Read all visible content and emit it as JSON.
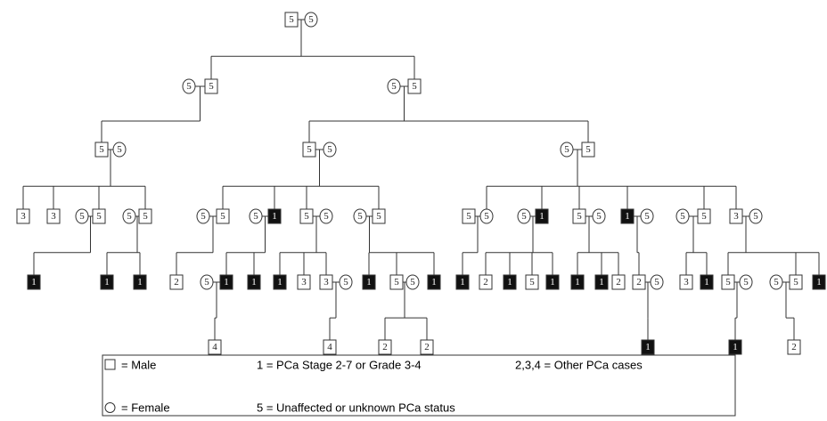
{
  "nodes": [
    {
      "label": "5",
      "sex": "male",
      "affected": false
    },
    {
      "label": "5",
      "sex": "female",
      "affected": false
    },
    {
      "label": "5",
      "sex": "female",
      "affected": false
    },
    {
      "label": "5",
      "sex": "male",
      "affected": false
    },
    {
      "label": "5",
      "sex": "female",
      "affected": false
    },
    {
      "label": "5",
      "sex": "male",
      "affected": false
    },
    {
      "label": "5",
      "sex": "male",
      "affected": false
    },
    {
      "label": "5",
      "sex": "female",
      "affected": false
    },
    {
      "label": "5",
      "sex": "male",
      "affected": false
    },
    {
      "label": "5",
      "sex": "female",
      "affected": false
    },
    {
      "label": "5",
      "sex": "female",
      "affected": false
    },
    {
      "label": "5",
      "sex": "male",
      "affected": false
    },
    {
      "label": "3",
      "sex": "male",
      "affected": false
    },
    {
      "label": "3",
      "sex": "male",
      "affected": false
    },
    {
      "label": "5",
      "sex": "female",
      "affected": false
    },
    {
      "label": "5",
      "sex": "male",
      "affected": false
    },
    {
      "label": "5",
      "sex": "female",
      "affected": false
    },
    {
      "label": "5",
      "sex": "male",
      "affected": false
    },
    {
      "label": "5",
      "sex": "female",
      "affected": false
    },
    {
      "label": "5",
      "sex": "male",
      "affected": false
    },
    {
      "label": "5",
      "sex": "female",
      "affected": false
    },
    {
      "label": "1",
      "sex": "male",
      "affected": true
    },
    {
      "label": "5",
      "sex": "male",
      "affected": false
    },
    {
      "label": "5",
      "sex": "female",
      "affected": false
    },
    {
      "label": "5",
      "sex": "female",
      "affected": false
    },
    {
      "label": "5",
      "sex": "male",
      "affected": false
    },
    {
      "label": "5",
      "sex": "male",
      "affected": false
    },
    {
      "label": "5",
      "sex": "female",
      "affected": false
    },
    {
      "label": "5",
      "sex": "female",
      "affected": false
    },
    {
      "label": "1",
      "sex": "male",
      "affected": true
    },
    {
      "label": "5",
      "sex": "male",
      "affected": false
    },
    {
      "label": "5",
      "sex": "female",
      "affected": false
    },
    {
      "label": "1",
      "sex": "male",
      "affected": true
    },
    {
      "label": "5",
      "sex": "female",
      "affected": false
    },
    {
      "label": "5",
      "sex": "female",
      "affected": false
    },
    {
      "label": "5",
      "sex": "male",
      "affected": false
    },
    {
      "label": "3",
      "sex": "male",
      "affected": false
    },
    {
      "label": "5",
      "sex": "female",
      "affected": false
    },
    {
      "label": "1",
      "sex": "male",
      "affected": true
    },
    {
      "label": "1",
      "sex": "male",
      "affected": true
    },
    {
      "label": "1",
      "sex": "male",
      "affected": true
    },
    {
      "label": "2",
      "sex": "male",
      "affected": false
    },
    {
      "label": "5",
      "sex": "female",
      "affected": false
    },
    {
      "label": "1",
      "sex": "male",
      "affected": true
    },
    {
      "label": "1",
      "sex": "male",
      "affected": true
    },
    {
      "label": "1",
      "sex": "male",
      "affected": true
    },
    {
      "label": "3",
      "sex": "male",
      "affected": false
    },
    {
      "label": "3",
      "sex": "male",
      "affected": false
    },
    {
      "label": "5",
      "sex": "female",
      "affected": false
    },
    {
      "label": "1",
      "sex": "male",
      "affected": true
    },
    {
      "label": "5",
      "sex": "male",
      "affected": false
    },
    {
      "label": "5",
      "sex": "female",
      "affected": false
    },
    {
      "label": "1",
      "sex": "male",
      "affected": true
    },
    {
      "label": "1",
      "sex": "male",
      "affected": true
    },
    {
      "label": "2",
      "sex": "male",
      "affected": false
    },
    {
      "label": "1",
      "sex": "male",
      "affected": true
    },
    {
      "label": "5",
      "sex": "male",
      "affected": false
    },
    {
      "label": "1",
      "sex": "male",
      "affected": true
    },
    {
      "label": "1",
      "sex": "male",
      "affected": true
    },
    {
      "label": "1",
      "sex": "male",
      "affected": true
    },
    {
      "label": "2",
      "sex": "male",
      "affected": false
    },
    {
      "label": "2",
      "sex": "male",
      "affected": false
    },
    {
      "label": "5",
      "sex": "female",
      "affected": false
    },
    {
      "label": "3",
      "sex": "male",
      "affected": false
    },
    {
      "label": "1",
      "sex": "male",
      "affected": true
    },
    {
      "label": "5",
      "sex": "male",
      "affected": false
    },
    {
      "label": "5",
      "sex": "female",
      "affected": false
    },
    {
      "label": "5",
      "sex": "female",
      "affected": false
    },
    {
      "label": "5",
      "sex": "male",
      "affected": false
    },
    {
      "label": "1",
      "sex": "male",
      "affected": true
    },
    {
      "label": "4",
      "sex": "male",
      "affected": false
    },
    {
      "label": "4",
      "sex": "male",
      "affected": false
    },
    {
      "label": "2",
      "sex": "male",
      "affected": false
    },
    {
      "label": "2",
      "sex": "male",
      "affected": false
    },
    {
      "label": "1",
      "sex": "male",
      "affected": true
    },
    {
      "label": "1",
      "sex": "male",
      "affected": true
    },
    {
      "label": "2",
      "sex": "male",
      "affected": false
    }
  ],
  "legend": {
    "male": "= Male",
    "female": "= Female",
    "stage": "1 = PCa Stage 2-7 or Grade 3-4",
    "unaffected": "5 = Unaffected or unknown PCa status",
    "other": "2,3,4 = Other PCa cases"
  }
}
